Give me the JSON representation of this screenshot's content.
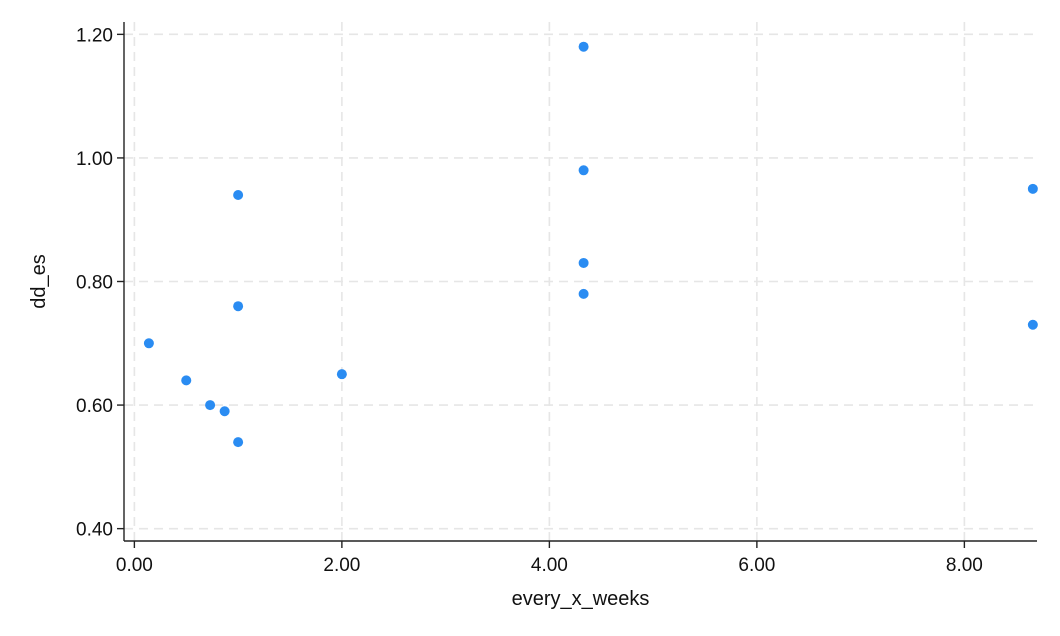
{
  "chart_data": {
    "type": "scatter",
    "xlabel": "every_x_weeks",
    "ylabel": "dd_es",
    "xlim": [
      -0.1,
      8.7
    ],
    "ylim": [
      0.38,
      1.22
    ],
    "x_ticks": [
      0,
      2,
      4,
      6,
      8
    ],
    "y_ticks": [
      0.4,
      0.6,
      0.8,
      1.0,
      1.2
    ],
    "x_tick_labels": [
      "0.00",
      "2.00",
      "4.00",
      "6.00",
      "8.00"
    ],
    "y_tick_labels": [
      "0.40",
      "0.60",
      "0.80",
      "1.00",
      "1.20"
    ],
    "grid": true,
    "marker_color": "#2a8cf2",
    "series": [
      {
        "points": [
          {
            "x": 0.14,
            "y": 0.7
          },
          {
            "x": 0.5,
            "y": 0.64
          },
          {
            "x": 0.73,
            "y": 0.6
          },
          {
            "x": 0.87,
            "y": 0.59
          },
          {
            "x": 1.0,
            "y": 0.94
          },
          {
            "x": 1.0,
            "y": 0.76
          },
          {
            "x": 1.0,
            "y": 0.54
          },
          {
            "x": 2.0,
            "y": 0.65
          },
          {
            "x": 4.33,
            "y": 1.18
          },
          {
            "x": 4.33,
            "y": 0.98
          },
          {
            "x": 4.33,
            "y": 0.83
          },
          {
            "x": 4.33,
            "y": 0.78
          },
          {
            "x": 8.66,
            "y": 0.95
          },
          {
            "x": 8.66,
            "y": 0.73
          }
        ]
      }
    ]
  }
}
